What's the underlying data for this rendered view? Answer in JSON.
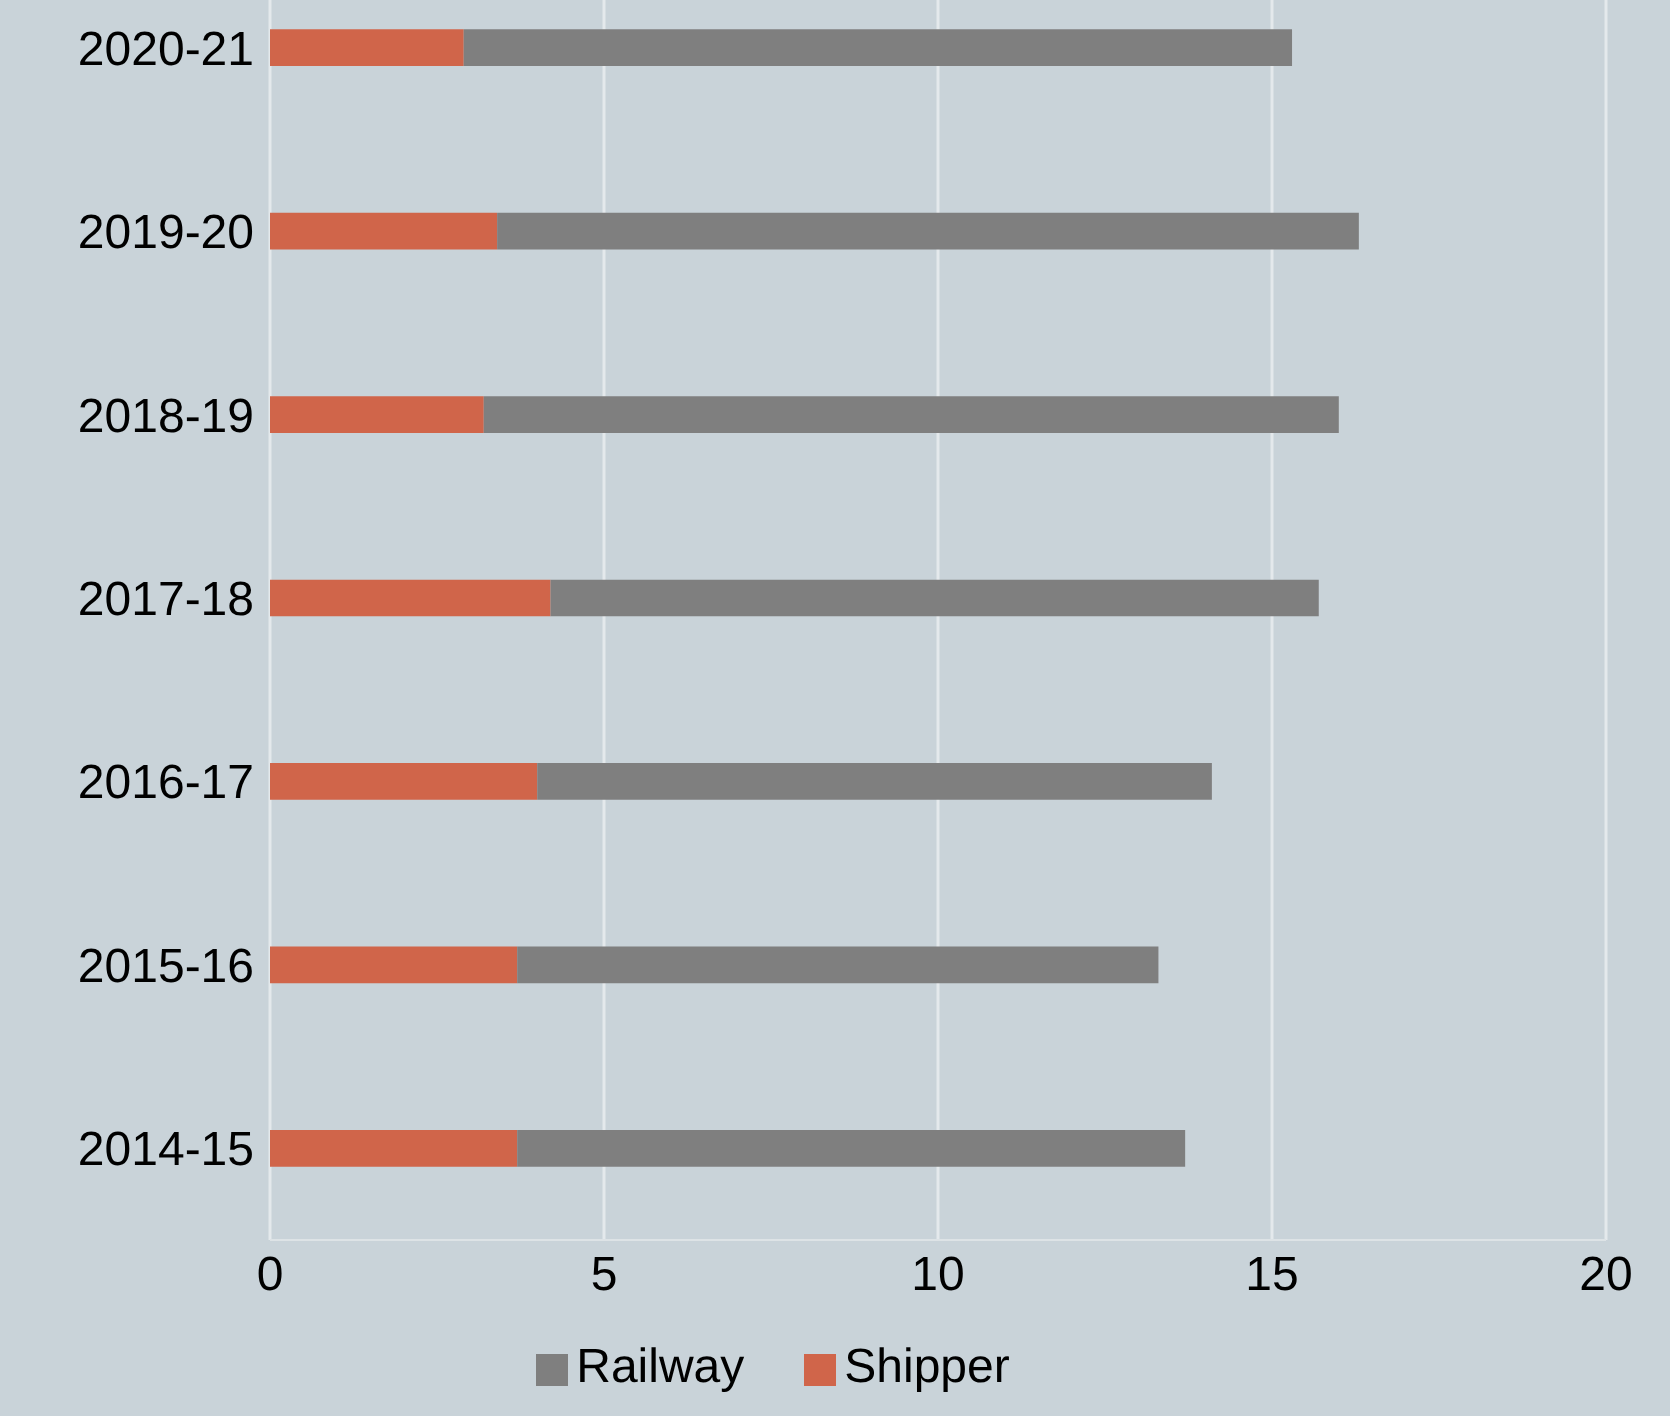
{
  "chart_data": {
    "type": "bar",
    "orientation": "horizontal",
    "stacked": true,
    "categories": [
      "2020-21",
      "2019-20",
      "2018-19",
      "2017-18",
      "2016-17",
      "2015-16",
      "2014-15"
    ],
    "series": [
      {
        "name": "Shipper",
        "color": "#d0654a",
        "values": [
          2.9,
          3.4,
          3.2,
          4.2,
          4.0,
          3.7,
          3.7
        ]
      },
      {
        "name": "Railway",
        "color": "#7f7f7f",
        "values": [
          12.4,
          12.9,
          12.8,
          11.5,
          10.1,
          9.6,
          10.0
        ]
      }
    ],
    "xlim": [
      0,
      20
    ],
    "xticks": [
      0,
      5,
      10,
      15,
      20
    ],
    "grid": "x",
    "legend": "bottom"
  }
}
